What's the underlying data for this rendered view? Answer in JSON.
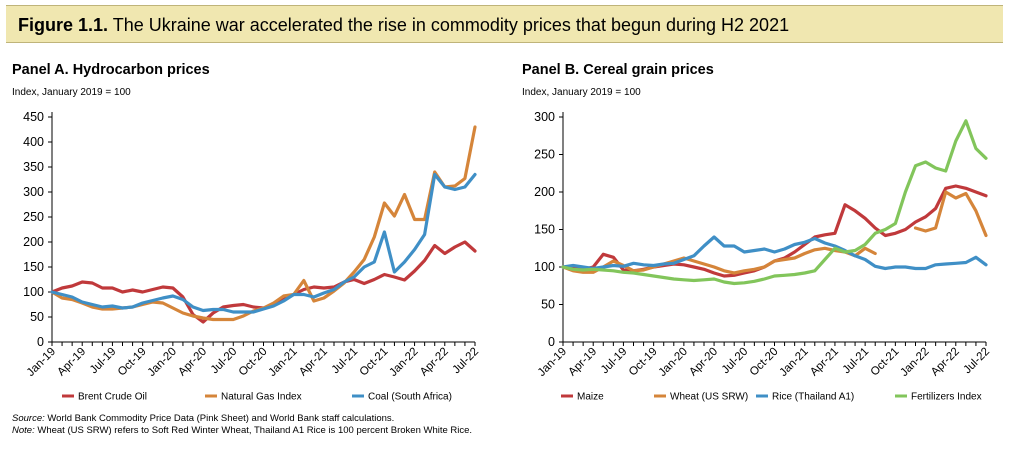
{
  "figure": {
    "label": "Figure 1.1",
    "caption": "The Ukraine war accelerated the rise in commodity prices that begun during H2 2021"
  },
  "chart_data": [
    {
      "type": "line",
      "title": "Panel A. Hydrocarbon prices",
      "ylabel": "Index, January 2019 = 100",
      "ylim": [
        0,
        450
      ],
      "yticks": [
        0,
        50,
        100,
        150,
        200,
        250,
        300,
        350,
        400,
        450
      ],
      "xticklabels": [
        "Jan-19",
        "Apr-19",
        "Jul-19",
        "Oct-19",
        "Jan-20",
        "Apr-20",
        "Jul-20",
        "Oct-20",
        "Jan-21",
        "Apr-21",
        "Jul-21",
        "Oct-21",
        "Jan-22",
        "Apr-22",
        "Jul-22"
      ],
      "x": [
        "Jan-19",
        "Feb-19",
        "Mar-19",
        "Apr-19",
        "May-19",
        "Jun-19",
        "Jul-19",
        "Aug-19",
        "Sep-19",
        "Oct-19",
        "Nov-19",
        "Dec-19",
        "Jan-20",
        "Feb-20",
        "Mar-20",
        "Apr-20",
        "May-20",
        "Jun-20",
        "Jul-20",
        "Aug-20",
        "Sep-20",
        "Oct-20",
        "Nov-20",
        "Dec-20",
        "Jan-21",
        "Feb-21",
        "Mar-21",
        "Apr-21",
        "May-21",
        "Jun-21",
        "Jul-21",
        "Aug-21",
        "Sep-21",
        "Oct-21",
        "Nov-21",
        "Dec-21",
        "Jan-22",
        "Feb-22",
        "Mar-22",
        "Apr-22",
        "May-22",
        "Jun-22",
        "Jul-22"
      ],
      "series": [
        {
          "name": "Brent Crude Oil",
          "color": "#c0393b",
          "values": [
            100,
            108,
            112,
            120,
            118,
            108,
            108,
            100,
            104,
            100,
            105,
            110,
            108,
            90,
            55,
            40,
            58,
            70,
            73,
            75,
            70,
            68,
            73,
            85,
            95,
            105,
            110,
            108,
            110,
            120,
            125,
            117,
            125,
            135,
            130,
            124,
            142,
            163,
            193,
            177,
            190,
            200,
            182
          ]
        },
        {
          "name": "Natural Gas Index",
          "color": "#d5853a",
          "values": [
            100,
            88,
            85,
            78,
            70,
            66,
            66,
            68,
            70,
            75,
            80,
            78,
            68,
            58,
            52,
            48,
            45,
            45,
            45,
            52,
            62,
            68,
            78,
            92,
            95,
            123,
            82,
            88,
            102,
            118,
            140,
            165,
            210,
            278,
            252,
            295,
            245,
            245,
            340,
            310,
            312,
            327,
            430
          ]
        },
        {
          "name": "Coal (South Africa)",
          "color": "#3f8fc6",
          "values": [
            100,
            95,
            90,
            80,
            75,
            70,
            72,
            68,
            70,
            78,
            83,
            88,
            92,
            85,
            70,
            63,
            65,
            65,
            60,
            60,
            60,
            66,
            72,
            82,
            95,
            95,
            90,
            98,
            105,
            120,
            130,
            150,
            160,
            220,
            140,
            160,
            185,
            215,
            335,
            310,
            305,
            310,
            335
          ]
        }
      ]
    },
    {
      "type": "line",
      "title": "Panel B. Cereal grain prices",
      "ylabel": "Index, January 2019 = 100",
      "ylim": [
        0,
        300
      ],
      "yticks": [
        0,
        50,
        100,
        150,
        200,
        250,
        300
      ],
      "xticklabels": [
        "Jan-19",
        "Apr-19",
        "Jul-19",
        "Oct-19",
        "Jan-20",
        "Apr-20",
        "Jul-20",
        "Oct-20",
        "Jan-21",
        "Apr-21",
        "Jul-21",
        "Oct-21",
        "Jan-22",
        "Apr-22",
        "Jul-22"
      ],
      "x": [
        "Jan-19",
        "Feb-19",
        "Mar-19",
        "Apr-19",
        "May-19",
        "Jun-19",
        "Jul-19",
        "Aug-19",
        "Sep-19",
        "Oct-19",
        "Nov-19",
        "Dec-19",
        "Jan-20",
        "Feb-20",
        "Mar-20",
        "Apr-20",
        "May-20",
        "Jun-20",
        "Jul-20",
        "Aug-20",
        "Sep-20",
        "Oct-20",
        "Nov-20",
        "Dec-20",
        "Jan-21",
        "Feb-21",
        "Mar-21",
        "Apr-21",
        "May-21",
        "Jun-21",
        "Jul-21",
        "Aug-21",
        "Sep-21",
        "Oct-21",
        "Nov-21",
        "Dec-21",
        "Jan-22",
        "Feb-22",
        "Mar-22",
        "Apr-22",
        "May-22",
        "Jun-22",
        "Jul-22"
      ],
      "series": [
        {
          "name": "Maize",
          "color": "#c0393b",
          "values": [
            100,
            98,
            97,
            100,
            117,
            113,
            96,
            95,
            97,
            100,
            102,
            104,
            103,
            100,
            97,
            92,
            88,
            89,
            92,
            95,
            100,
            108,
            112,
            120,
            130,
            140,
            143,
            145,
            183,
            175,
            165,
            152,
            142,
            145,
            150,
            160,
            167,
            178,
            205,
            208,
            205,
            200,
            195
          ]
        },
        {
          "name": "Wheat (US SRW)",
          "color": "#d5853a",
          "values": [
            100,
            95,
            93,
            93,
            100,
            108,
            102,
            95,
            96,
            100,
            104,
            108,
            112,
            108,
            104,
            100,
            95,
            92,
            95,
            97,
            100,
            108,
            110,
            112,
            118,
            123,
            125,
            122,
            120,
            115,
            125,
            118,
            null,
            null,
            null,
            152,
            148,
            152,
            200,
            192,
            198,
            175,
            142
          ]
        },
        {
          "name": "Rice (Thailand A1)",
          "color": "#3f8fc6",
          "values": [
            100,
            102,
            100,
            98,
            100,
            102,
            101,
            105,
            103,
            102,
            104,
            105,
            110,
            115,
            128,
            140,
            128,
            128,
            120,
            122,
            124,
            120,
            124,
            130,
            133,
            138,
            132,
            128,
            122,
            115,
            110,
            101,
            98,
            100,
            100,
            98,
            98,
            103,
            104,
            105,
            106,
            113,
            103
          ]
        },
        {
          "name": "Fertilizers Index",
          "color": "#82c55b",
          "values": [
            100,
            97,
            96,
            97,
            96,
            95,
            93,
            92,
            90,
            88,
            86,
            84,
            83,
            82,
            83,
            84,
            80,
            78,
            79,
            81,
            84,
            88,
            89,
            90,
            92,
            95,
            110,
            125,
            120,
            122,
            130,
            145,
            150,
            158,
            200,
            235,
            240,
            232,
            228,
            268,
            295,
            258,
            245
          ]
        }
      ]
    }
  ],
  "notes": {
    "source_label": "Source:",
    "source_text": "World Bank Commodity Price Data (Pink Sheet) and World Bank staff calculations.",
    "note_label": "Note:",
    "note_text": "Wheat (US SRW) refers to Soft Red Winter Wheat, Thailand A1 Rice is 100 percent Broken White Rice."
  }
}
